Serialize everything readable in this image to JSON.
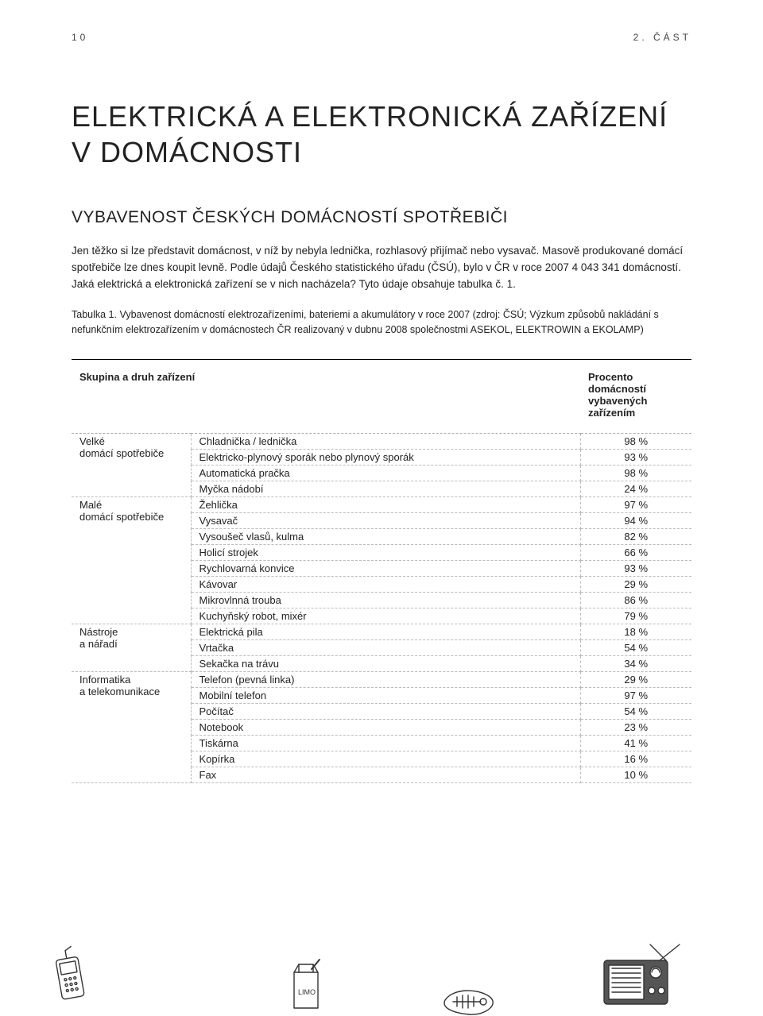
{
  "header": {
    "page_number": "10",
    "section_label": "2. ČÁST"
  },
  "main_title": "ELEKTRICKÁ A ELEKTRONICKÁ ZAŘÍZENÍ V DOMÁCNOSTI",
  "sub_title": "VYBAVENOST ČESKÝCH DOMÁCNOSTÍ SPOTŘEBIČI",
  "paragraph": "Jen těžko si lze představit domácnost, v níž by nebyla lednička, rozhlasový přijímač nebo vysavač. Masově produkované domácí spotřebiče lze dnes koupit levně. Podle údajů Českého statistického úřadu (ČSÚ), bylo v ČR v roce 2007 4 043 341 domácností. Jaká elektrická a elektronická zařízení se v nich nacházela? Tyto údaje obsahuje tabulka č. 1.",
  "table_caption": "Tabulka 1. Vybavenost domácností elektrozařízeními, bateriemi a akumulátory v roce 2007 (zdroj: ČSÚ; Výzkum způsobů nakládání s nefunkčním elektrozařízením v domácnostech ČR realizovaný v dubnu 2008 společnostmi ASEKOL, ELEKTROWIN a EKOLAMP)",
  "table": {
    "header_left": "Skupina a druh zařízení",
    "header_right": "Procento domácností vybavených zařízením",
    "groups": [
      {
        "name": "Velké domácí spotřebiče",
        "rows": [
          {
            "item": "Chladnička / lednička",
            "pct": "98 %"
          },
          {
            "item": "Elektricko-plynový sporák nebo plynový sporák",
            "pct": "93 %"
          },
          {
            "item": "Automatická pračka",
            "pct": "98 %"
          },
          {
            "item": "Myčka nádobí",
            "pct": "24 %"
          }
        ]
      },
      {
        "name": "Malé domácí spotřebiče",
        "rows": [
          {
            "item": "Žehlička",
            "pct": "97 %"
          },
          {
            "item": "Vysavač",
            "pct": "94 %"
          },
          {
            "item": "Vysoušeč vlasů, kulma",
            "pct": "82 %"
          },
          {
            "item": "Holicí strojek",
            "pct": "66 %"
          },
          {
            "item": "Rychlovarná konvice",
            "pct": "93 %"
          },
          {
            "item": "Kávovar",
            "pct": "29 %"
          },
          {
            "item": "Mikrovlnná trouba",
            "pct": "86 %"
          },
          {
            "item": "Kuchyňský robot, mixér",
            "pct": "79 %"
          }
        ]
      },
      {
        "name": "Nástroje a nářadí",
        "rows": [
          {
            "item": "Elektrická pila",
            "pct": "18 %"
          },
          {
            "item": "Vrtačka",
            "pct": "54 %"
          },
          {
            "item": "Sekačka na trávu",
            "pct": "34 %"
          }
        ]
      },
      {
        "name": "Informatika a telekomunikace",
        "rows": [
          {
            "item": "Telefon (pevná linka)",
            "pct": "29 %"
          },
          {
            "item": "Mobilní telefon",
            "pct": "97 %"
          },
          {
            "item": "Počítač",
            "pct": "54 %"
          },
          {
            "item": "Notebook",
            "pct": "23 %"
          },
          {
            "item": "Tiskárna",
            "pct": "41 %"
          },
          {
            "item": "Kopírka",
            "pct": "16 %"
          },
          {
            "item": "Fax",
            "pct": "10 %"
          }
        ]
      }
    ]
  },
  "colors": {
    "text": "#222222",
    "rule": "#000000",
    "dashed": "#bbbbbb",
    "background": "#ffffff"
  },
  "typography": {
    "main_title_fontsize": 36,
    "sub_title_fontsize": 21,
    "body_fontsize": 13.5,
    "caption_fontsize": 12.5,
    "table_fontsize": 13
  }
}
